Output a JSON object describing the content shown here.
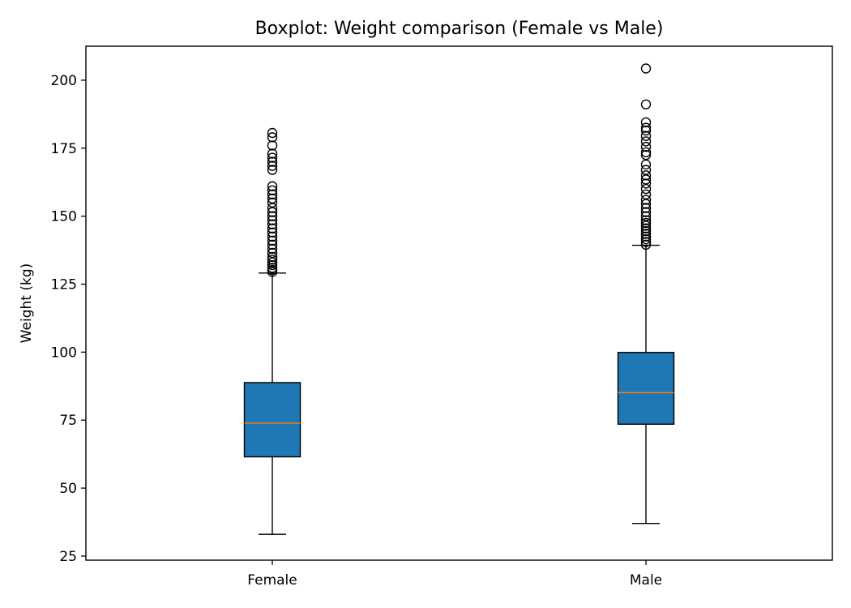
{
  "chart_data": {
    "type": "boxplot",
    "title": "Boxplot: Weight comparison (Female vs Male)",
    "xlabel": "",
    "ylabel": "Weight (kg)",
    "ylim": [
      23.5,
      212.5
    ],
    "yticks": [
      25,
      50,
      75,
      100,
      125,
      150,
      175,
      200
    ],
    "grid": false,
    "colors": {
      "box_fill": "#1f77b4",
      "median": "#ff7f0e",
      "edge": "#000000",
      "background": "#ffffff"
    },
    "categories": [
      "Female",
      "Male"
    ],
    "boxes": [
      {
        "label": "Female",
        "whisker_low": 33,
        "q1": 61.5,
        "median": 73.9,
        "q3": 88.8,
        "whisker_high": 129.1,
        "outliers": [
          129.5,
          130.2,
          131,
          132,
          133,
          134,
          135,
          136.5,
          138,
          139.5,
          141,
          142.5,
          144,
          145.5,
          147,
          148.5,
          150,
          151.5,
          153,
          155,
          156.5,
          158,
          159.5,
          161,
          167,
          168.5,
          170,
          171.5,
          173,
          176,
          179,
          180.6
        ]
      },
      {
        "label": "Male",
        "whisker_low": 37,
        "q1": 73.5,
        "median": 85.1,
        "q3": 99.9,
        "whisker_high": 139.3,
        "outliers": [
          139.5,
          140.5,
          141.5,
          142.5,
          143.5,
          144.5,
          145.5,
          146.5,
          147.5,
          148.5,
          150,
          151.5,
          153,
          154.5,
          156,
          158,
          160,
          162,
          163.5,
          165,
          167,
          169,
          172.5,
          173.5,
          175.5,
          177.5,
          179.5,
          181.5,
          182.5,
          184.5,
          191.1,
          204.3
        ]
      }
    ]
  }
}
